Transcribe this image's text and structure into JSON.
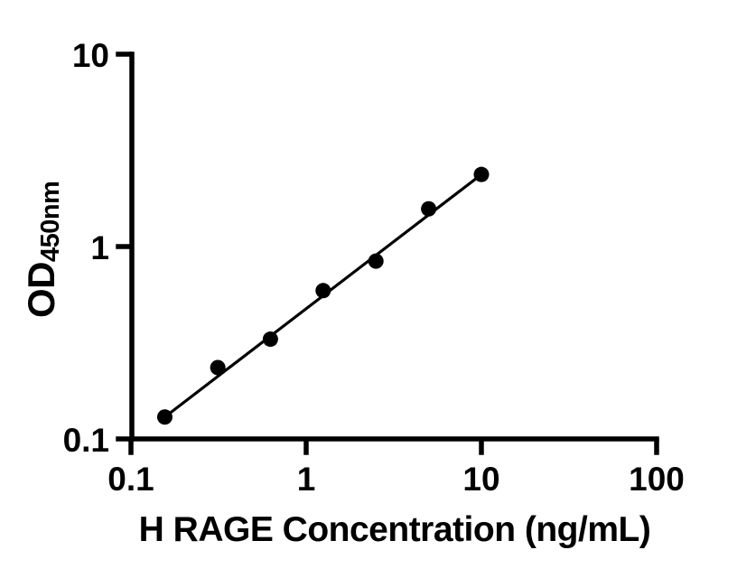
{
  "chart_data": {
    "type": "scatter",
    "title": "",
    "xlabel": "H RAGE Concentration (ng/mL)",
    "ylabel_main": "OD",
    "ylabel_sub": "450nm",
    "x_scale": "log10",
    "y_scale": "log10",
    "xlim": [
      0.1,
      100
    ],
    "ylim": [
      0.1,
      10
    ],
    "grid": false,
    "legend": null,
    "x_ticks": [
      {
        "value": 0.1,
        "label": "0.1"
      },
      {
        "value": 1,
        "label": "1"
      },
      {
        "value": 10,
        "label": "10"
      },
      {
        "value": 100,
        "label": "100"
      }
    ],
    "y_ticks": [
      {
        "value": 0.1,
        "label": "0.1"
      },
      {
        "value": 1,
        "label": "1"
      },
      {
        "value": 10,
        "label": "10"
      }
    ],
    "points": [
      {
        "x": 0.156,
        "y": 0.13
      },
      {
        "x": 0.313,
        "y": 0.235
      },
      {
        "x": 0.625,
        "y": 0.33
      },
      {
        "x": 1.25,
        "y": 0.59
      },
      {
        "x": 2.5,
        "y": 0.84
      },
      {
        "x": 5,
        "y": 1.57
      },
      {
        "x": 10,
        "y": 2.37
      }
    ],
    "trendline": {
      "from_point": 0,
      "to_point": 6
    },
    "marker_color": "#000000",
    "line_color": "#000000",
    "axis_color": "#000000",
    "text_color": "#000000",
    "background": "#ffffff"
  }
}
